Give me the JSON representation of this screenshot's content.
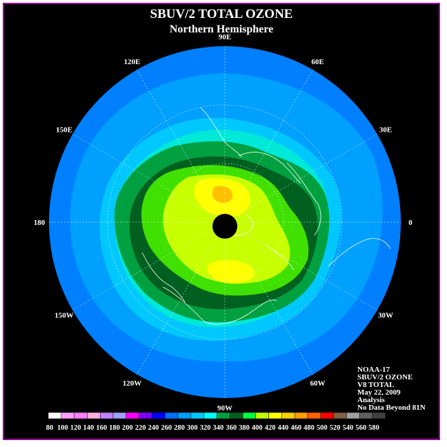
{
  "title": "SBUV/2 TOTAL OZONE",
  "subtitle": "Northern Hemisphere",
  "longitude_labels": [
    {
      "text": "90E",
      "lon": 90
    },
    {
      "text": "60E",
      "lon": 60
    },
    {
      "text": "30E",
      "lon": 30
    },
    {
      "text": "0",
      "lon": 0
    },
    {
      "text": "30W",
      "lon": -30
    },
    {
      "text": "60W",
      "lon": -60
    },
    {
      "text": "90W",
      "lon": -90
    },
    {
      "text": "120W",
      "lon": -120
    },
    {
      "text": "150W",
      "lon": -150
    },
    {
      "text": "180",
      "lon": 180
    },
    {
      "text": "150E",
      "lon": 150
    },
    {
      "text": "120E",
      "lon": 120
    }
  ],
  "info": [
    "NOAA-17",
    "SBUV/2 OZONE",
    "V8 TOTAL",
    "May 22, 2009",
    "Analysis",
    "No Data Beyond 81N"
  ],
  "colorbar": {
    "labels": [
      "80",
      "100",
      "120",
      "140",
      "160",
      "180",
      "200",
      "220",
      "240",
      "260",
      "280",
      "300",
      "320",
      "340",
      "360",
      "380",
      "400",
      "420",
      "440",
      "460",
      "480",
      "500",
      "520",
      "540",
      "560",
      "580"
    ],
    "colors": [
      "#ffffff",
      "#ffa0ff",
      "#ff80ff",
      "#ffb0e0",
      "#c080ff",
      "#a0a0ff",
      "#ff00ff",
      "#8000ff",
      "#0000ff",
      "#0070ff",
      "#00a0ff",
      "#00c8ff",
      "#00ffff",
      "#00a040",
      "#006020",
      "#00ff40",
      "#c0ff00",
      "#ffff00",
      "#ffd000",
      "#ffa000",
      "#ff6000",
      "#ff0000",
      "#806040",
      "#a0a0a0",
      "#606060",
      "#404040"
    ]
  },
  "legend_colors": {
    "background": "#000000",
    "frame": "#a000a0",
    "outer_ring": "#0080ff",
    "ring_300": "#00a0ff",
    "ring_320": "#00e8d8",
    "band_340": "#00a040",
    "band_360": "#006020",
    "band_380": "#40e000",
    "band_400": "#c8ff00",
    "band_420": "#ffff00",
    "band_440": "#ffc000",
    "coast": "#ffffff",
    "pole_cap": "#000000"
  }
}
